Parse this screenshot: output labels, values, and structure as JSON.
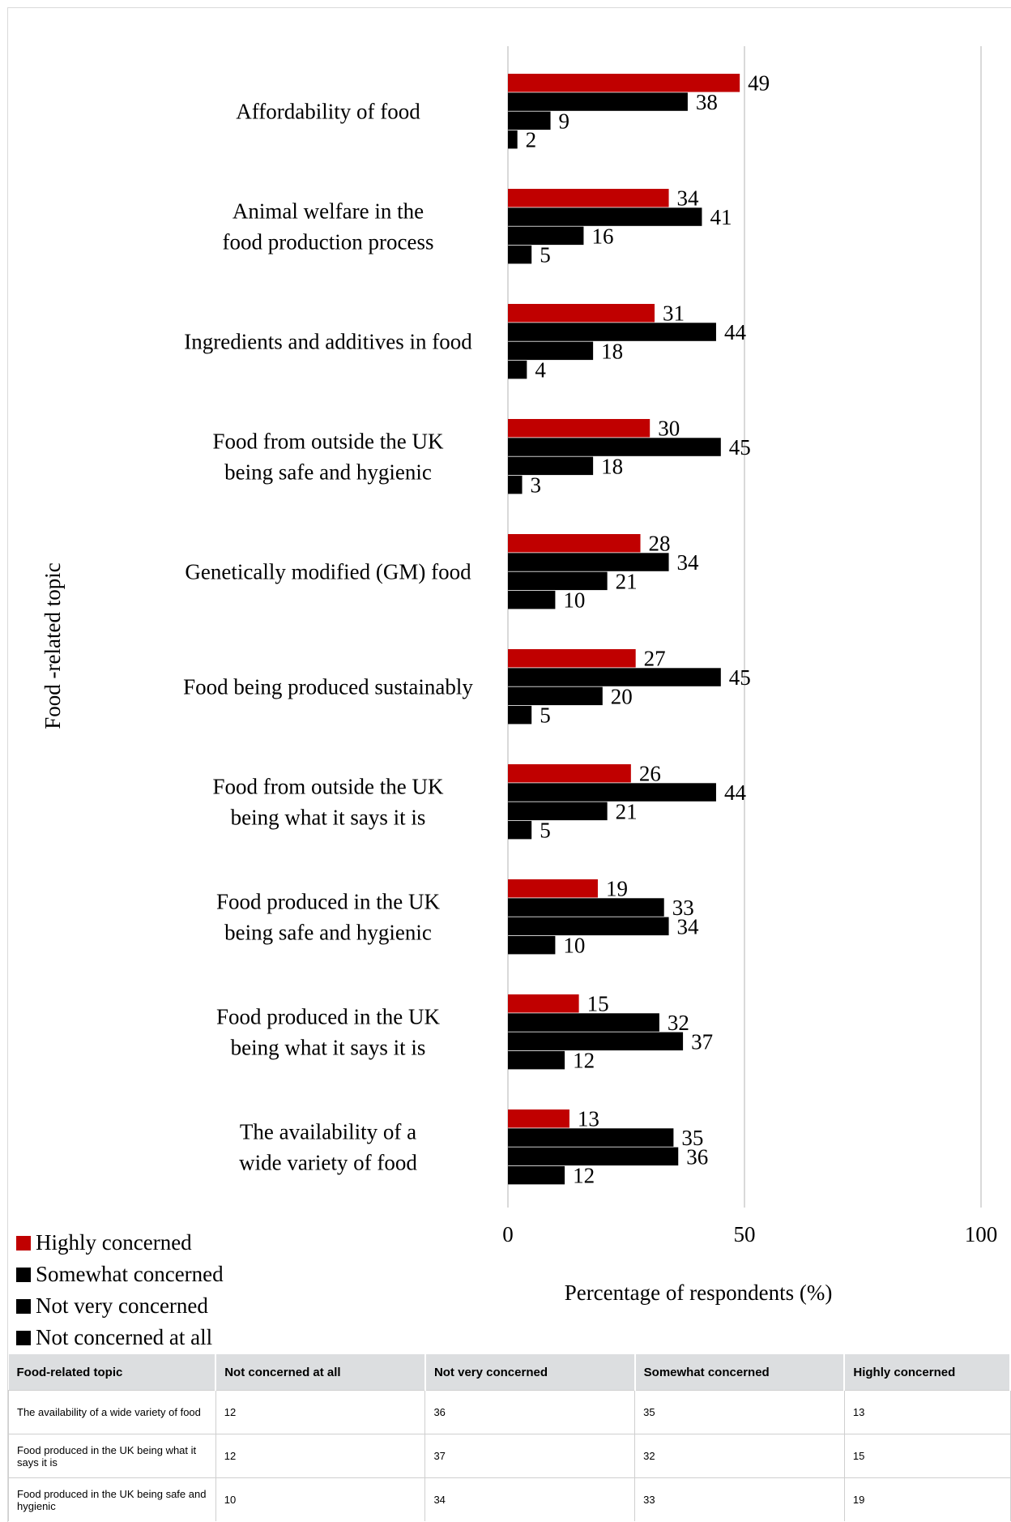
{
  "chart_data": {
    "type": "bar",
    "orientation": "horizontal",
    "ylabel": "Food -related topic",
    "xlabel": "Percentage of respondents (%)",
    "xlim": [
      0,
      100
    ],
    "xticks": [
      "0",
      "50",
      "100"
    ],
    "categories": [
      [
        "Affordability of food"
      ],
      [
        "Animal welfare in the",
        "food production process"
      ],
      [
        "Ingredients and additives in food"
      ],
      [
        "Food from outside the UK",
        "being safe and hygienic"
      ],
      [
        "Genetically modified (GM) food"
      ],
      [
        "Food being produced sustainably"
      ],
      [
        "Food from outside the UK",
        "being what it says it is"
      ],
      [
        "Food produced in the UK",
        "being safe and hygienic"
      ],
      [
        "Food produced in the UK",
        "being what it says it is"
      ],
      [
        "The availability of a",
        "wide variety of food"
      ]
    ],
    "series": [
      {
        "name": "Highly concerned",
        "color": "#c00000",
        "values": [
          49,
          34,
          31,
          30,
          28,
          27,
          26,
          19,
          15,
          13
        ]
      },
      {
        "name": "Somewhat concerned",
        "color": "#000000",
        "values": [
          38,
          41,
          44,
          45,
          34,
          45,
          44,
          33,
          32,
          35
        ]
      },
      {
        "name": "Not very concerned",
        "color": "#000000",
        "values": [
          9,
          16,
          18,
          18,
          21,
          20,
          21,
          34,
          37,
          36
        ]
      },
      {
        "name": "Not concerned at all",
        "color": "#000000",
        "values": [
          2,
          5,
          4,
          3,
          10,
          5,
          5,
          10,
          12,
          12
        ]
      }
    ],
    "grid": true,
    "legend_position": "bottom-left"
  },
  "table": {
    "headers": [
      "Food-related topic",
      "Not concerned at all",
      "Not very concerned",
      "Somewhat concerned",
      "Highly concerned"
    ],
    "rows": [
      [
        "The availability of a wide variety of food",
        "12",
        "36",
        "35",
        "13"
      ],
      [
        "Food produced in the UK being what it says it is",
        "12",
        "37",
        "32",
        "15"
      ],
      [
        "Food produced in the UK being safe and hygienic",
        "10",
        "34",
        "33",
        "19"
      ]
    ]
  }
}
